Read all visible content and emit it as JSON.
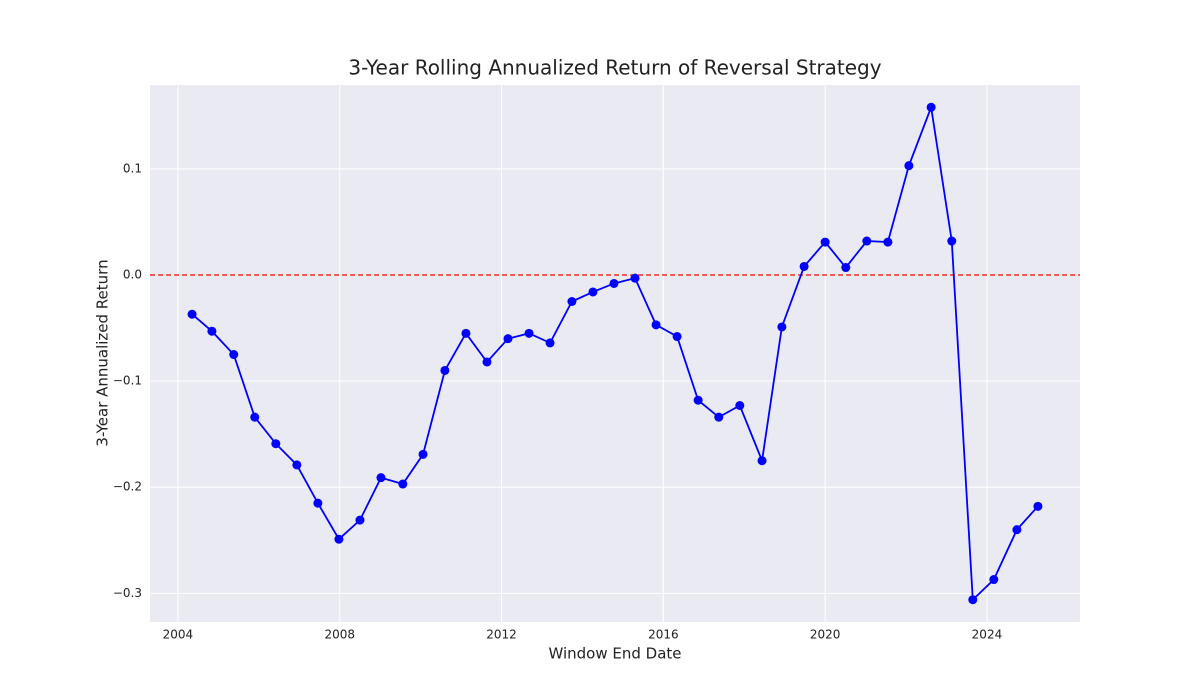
{
  "chart_data": {
    "type": "line",
    "title": "3-Year Rolling Annualized Return of Reversal Strategy",
    "x_label": "Window End Date",
    "y_label": "3-Year Annualized Return",
    "x": [
      2004.35,
      2004.84,
      2005.38,
      2005.9,
      2006.42,
      2006.94,
      2007.46,
      2007.98,
      2008.5,
      2009.02,
      2009.56,
      2010.06,
      2010.6,
      2011.12,
      2011.64,
      2012.16,
      2012.68,
      2013.2,
      2013.74,
      2014.26,
      2014.78,
      2015.3,
      2015.82,
      2016.34,
      2016.86,
      2017.37,
      2017.89,
      2018.44,
      2018.93,
      2019.48,
      2020.0,
      2020.51,
      2021.03,
      2021.55,
      2022.07,
      2022.62,
      2023.13,
      2023.65,
      2024.17,
      2024.74,
      2025.26
    ],
    "series": [
      {
        "color": "#0000ff",
        "values": [
          -0.037,
          -0.053,
          -0.075,
          -0.134,
          -0.159,
          -0.179,
          -0.215,
          -0.249,
          -0.231,
          -0.191,
          -0.197,
          -0.169,
          -0.09,
          -0.055,
          -0.082,
          -0.06,
          -0.055,
          -0.064,
          -0.025,
          -0.016,
          -0.008,
          -0.003,
          -0.047,
          -0.058,
          -0.118,
          -0.134,
          -0.123,
          -0.175,
          -0.049,
          0.008,
          0.031,
          0.007,
          0.032,
          0.031,
          0.103,
          0.158,
          0.032,
          -0.306,
          -0.287,
          -0.24,
          -0.218
        ]
      }
    ],
    "xlim": [
      2003.31,
      2026.3
    ],
    "xticks": [
      2004,
      2008,
      2012,
      2016,
      2020,
      2024
    ],
    "ylim": [
      -0.327,
      0.179
    ],
    "yticks": [
      {
        "value": -0.3,
        "label": "−0.3"
      },
      {
        "value": -0.2,
        "label": "−0.2"
      },
      {
        "value": -0.1,
        "label": "−0.1"
      },
      {
        "value": 0,
        "label": "0.0"
      },
      0.1
    ],
    "reference_line": 0,
    "reference_color": "#ff0000",
    "grid": true
  }
}
